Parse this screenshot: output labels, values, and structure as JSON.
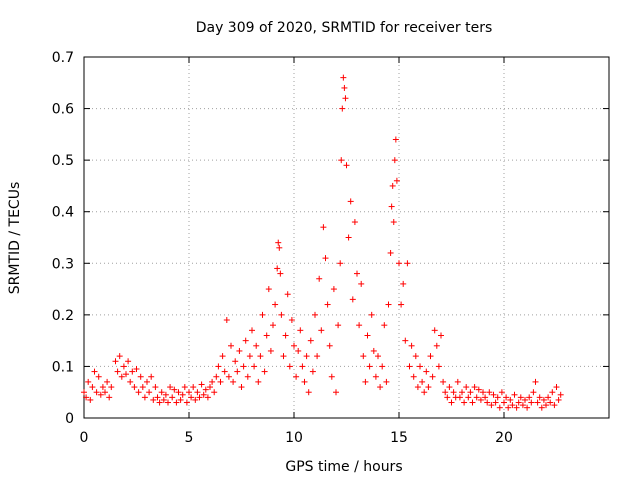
{
  "chart_data": {
    "type": "scatter",
    "title": "Day 309 of 2020, SRMTID for receiver ters",
    "xlabel": "GPS time / hours",
    "ylabel": "SRMTID / TECUs",
    "xlim": [
      0,
      25
    ],
    "ylim": [
      0,
      0.7
    ],
    "xticks": [
      0,
      5,
      10,
      15,
      20
    ],
    "xtick_labels": [
      "0",
      "5",
      "10",
      "15",
      "20"
    ],
    "yticks": [
      0,
      0.1,
      0.2,
      0.3,
      0.4,
      0.5,
      0.6,
      0.7
    ],
    "ytick_labels": [
      "0",
      "0.1",
      "0.2",
      "0.3",
      "0.4",
      "0.5",
      "0.6",
      "0.7"
    ],
    "grid": true,
    "marker": "+",
    "series_color": "#ff0000",
    "series": [
      {
        "name": "SRMTID",
        "points": [
          [
            0.0,
            0.05
          ],
          [
            0.1,
            0.04
          ],
          [
            0.2,
            0.07
          ],
          [
            0.3,
            0.035
          ],
          [
            0.4,
            0.06
          ],
          [
            0.5,
            0.09
          ],
          [
            0.6,
            0.05
          ],
          [
            0.7,
            0.08
          ],
          [
            0.8,
            0.045
          ],
          [
            0.9,
            0.06
          ],
          [
            1.0,
            0.05
          ],
          [
            1.1,
            0.07
          ],
          [
            1.2,
            0.04
          ],
          [
            1.3,
            0.06
          ],
          [
            1.5,
            0.11
          ],
          [
            1.6,
            0.09
          ],
          [
            1.7,
            0.12
          ],
          [
            1.8,
            0.08
          ],
          [
            1.9,
            0.1
          ],
          [
            2.0,
            0.085
          ],
          [
            2.1,
            0.11
          ],
          [
            2.2,
            0.07
          ],
          [
            2.3,
            0.09
          ],
          [
            2.4,
            0.06
          ],
          [
            2.5,
            0.095
          ],
          [
            2.6,
            0.05
          ],
          [
            2.7,
            0.08
          ],
          [
            2.8,
            0.06
          ],
          [
            2.9,
            0.04
          ],
          [
            3.0,
            0.07
          ],
          [
            3.1,
            0.05
          ],
          [
            3.2,
            0.08
          ],
          [
            3.3,
            0.035
          ],
          [
            3.4,
            0.06
          ],
          [
            3.5,
            0.04
          ],
          [
            3.6,
            0.03
          ],
          [
            3.7,
            0.05
          ],
          [
            3.8,
            0.035
          ],
          [
            3.9,
            0.045
          ],
          [
            4.0,
            0.03
          ],
          [
            4.1,
            0.06
          ],
          [
            4.2,
            0.04
          ],
          [
            4.3,
            0.055
          ],
          [
            4.4,
            0.03
          ],
          [
            4.5,
            0.05
          ],
          [
            4.6,
            0.035
          ],
          [
            4.7,
            0.045
          ],
          [
            4.8,
            0.06
          ],
          [
            4.9,
            0.03
          ],
          [
            5.0,
            0.05
          ],
          [
            5.1,
            0.04
          ],
          [
            5.2,
            0.06
          ],
          [
            5.3,
            0.035
          ],
          [
            5.4,
            0.05
          ],
          [
            5.5,
            0.04
          ],
          [
            5.6,
            0.065
          ],
          [
            5.7,
            0.045
          ],
          [
            5.8,
            0.055
          ],
          [
            5.9,
            0.04
          ],
          [
            6.0,
            0.06
          ],
          [
            6.1,
            0.07
          ],
          [
            6.2,
            0.05
          ],
          [
            6.3,
            0.08
          ],
          [
            6.4,
            0.1
          ],
          [
            6.5,
            0.07
          ],
          [
            6.6,
            0.12
          ],
          [
            6.7,
            0.09
          ],
          [
            6.8,
            0.19
          ],
          [
            6.9,
            0.08
          ],
          [
            7.0,
            0.14
          ],
          [
            7.1,
            0.07
          ],
          [
            7.2,
            0.11
          ],
          [
            7.3,
            0.09
          ],
          [
            7.4,
            0.13
          ],
          [
            7.5,
            0.06
          ],
          [
            7.6,
            0.1
          ],
          [
            7.7,
            0.15
          ],
          [
            7.8,
            0.08
          ],
          [
            7.9,
            0.12
          ],
          [
            8.0,
            0.17
          ],
          [
            8.1,
            0.1
          ],
          [
            8.2,
            0.14
          ],
          [
            8.3,
            0.07
          ],
          [
            8.4,
            0.12
          ],
          [
            8.5,
            0.2
          ],
          [
            8.6,
            0.09
          ],
          [
            8.7,
            0.16
          ],
          [
            8.8,
            0.25
          ],
          [
            8.9,
            0.13
          ],
          [
            9.0,
            0.18
          ],
          [
            9.1,
            0.22
          ],
          [
            9.2,
            0.29
          ],
          [
            9.25,
            0.34
          ],
          [
            9.3,
            0.33
          ],
          [
            9.35,
            0.28
          ],
          [
            9.4,
            0.2
          ],
          [
            9.5,
            0.12
          ],
          [
            9.6,
            0.16
          ],
          [
            9.7,
            0.24
          ],
          [
            9.8,
            0.1
          ],
          [
            9.9,
            0.19
          ],
          [
            10.0,
            0.14
          ],
          [
            10.1,
            0.08
          ],
          [
            10.2,
            0.13
          ],
          [
            10.3,
            0.17
          ],
          [
            10.4,
            0.1
          ],
          [
            10.5,
            0.07
          ],
          [
            10.6,
            0.12
          ],
          [
            10.7,
            0.05
          ],
          [
            10.8,
            0.15
          ],
          [
            10.9,
            0.09
          ],
          [
            11.0,
            0.2
          ],
          [
            11.1,
            0.12
          ],
          [
            11.2,
            0.27
          ],
          [
            11.3,
            0.17
          ],
          [
            11.4,
            0.37
          ],
          [
            11.5,
            0.31
          ],
          [
            11.6,
            0.22
          ],
          [
            11.7,
            0.14
          ],
          [
            11.8,
            0.08
          ],
          [
            11.9,
            0.25
          ],
          [
            12.0,
            0.05
          ],
          [
            12.1,
            0.18
          ],
          [
            12.2,
            0.3
          ],
          [
            12.25,
            0.5
          ],
          [
            12.3,
            0.6
          ],
          [
            12.35,
            0.66
          ],
          [
            12.4,
            0.64
          ],
          [
            12.45,
            0.62
          ],
          [
            12.5,
            0.49
          ],
          [
            12.6,
            0.35
          ],
          [
            12.7,
            0.42
          ],
          [
            12.8,
            0.23
          ],
          [
            12.9,
            0.38
          ],
          [
            13.0,
            0.28
          ],
          [
            13.1,
            0.18
          ],
          [
            13.2,
            0.26
          ],
          [
            13.3,
            0.12
          ],
          [
            13.4,
            0.07
          ],
          [
            13.5,
            0.16
          ],
          [
            13.6,
            0.1
          ],
          [
            13.7,
            0.2
          ],
          [
            13.8,
            0.13
          ],
          [
            13.9,
            0.08
          ],
          [
            14.0,
            0.12
          ],
          [
            14.1,
            0.06
          ],
          [
            14.2,
            0.1
          ],
          [
            14.3,
            0.18
          ],
          [
            14.4,
            0.07
          ],
          [
            14.5,
            0.22
          ],
          [
            14.6,
            0.32
          ],
          [
            14.65,
            0.41
          ],
          [
            14.7,
            0.45
          ],
          [
            14.75,
            0.38
          ],
          [
            14.8,
            0.5
          ],
          [
            14.85,
            0.54
          ],
          [
            14.9,
            0.46
          ],
          [
            15.0,
            0.3
          ],
          [
            15.1,
            0.22
          ],
          [
            15.2,
            0.26
          ],
          [
            15.3,
            0.15
          ],
          [
            15.4,
            0.3
          ],
          [
            15.5,
            0.1
          ],
          [
            15.6,
            0.14
          ],
          [
            15.7,
            0.08
          ],
          [
            15.8,
            0.12
          ],
          [
            15.9,
            0.06
          ],
          [
            16.0,
            0.1
          ],
          [
            16.1,
            0.07
          ],
          [
            16.2,
            0.05
          ],
          [
            16.3,
            0.09
          ],
          [
            16.4,
            0.06
          ],
          [
            16.5,
            0.12
          ],
          [
            16.6,
            0.08
          ],
          [
            16.7,
            0.17
          ],
          [
            16.8,
            0.14
          ],
          [
            16.9,
            0.1
          ],
          [
            17.0,
            0.16
          ],
          [
            17.1,
            0.07
          ],
          [
            17.2,
            0.05
          ],
          [
            17.3,
            0.04
          ],
          [
            17.4,
            0.06
          ],
          [
            17.5,
            0.03
          ],
          [
            17.6,
            0.05
          ],
          [
            17.7,
            0.04
          ],
          [
            17.8,
            0.07
          ],
          [
            17.9,
            0.04
          ],
          [
            18.0,
            0.05
          ],
          [
            18.1,
            0.03
          ],
          [
            18.2,
            0.06
          ],
          [
            18.3,
            0.04
          ],
          [
            18.4,
            0.05
          ],
          [
            18.5,
            0.03
          ],
          [
            18.6,
            0.06
          ],
          [
            18.7,
            0.04
          ],
          [
            18.8,
            0.055
          ],
          [
            18.9,
            0.035
          ],
          [
            19.0,
            0.05
          ],
          [
            19.1,
            0.04
          ],
          [
            19.2,
            0.03
          ],
          [
            19.3,
            0.05
          ],
          [
            19.4,
            0.025
          ],
          [
            19.5,
            0.045
          ],
          [
            19.6,
            0.03
          ],
          [
            19.7,
            0.04
          ],
          [
            19.8,
            0.02
          ],
          [
            19.9,
            0.05
          ],
          [
            20.0,
            0.03
          ],
          [
            20.1,
            0.04
          ],
          [
            20.2,
            0.02
          ],
          [
            20.3,
            0.035
          ],
          [
            20.4,
            0.025
          ],
          [
            20.5,
            0.045
          ],
          [
            20.6,
            0.02
          ],
          [
            20.7,
            0.03
          ],
          [
            20.8,
            0.04
          ],
          [
            20.9,
            0.025
          ],
          [
            21.0,
            0.035
          ],
          [
            21.1,
            0.02
          ],
          [
            21.2,
            0.04
          ],
          [
            21.3,
            0.03
          ],
          [
            21.4,
            0.05
          ],
          [
            21.5,
            0.07
          ],
          [
            21.6,
            0.03
          ],
          [
            21.7,
            0.04
          ],
          [
            21.8,
            0.02
          ],
          [
            21.9,
            0.035
          ],
          [
            22.0,
            0.025
          ],
          [
            22.1,
            0.04
          ],
          [
            22.2,
            0.03
          ],
          [
            22.3,
            0.05
          ],
          [
            22.4,
            0.025
          ],
          [
            22.5,
            0.06
          ],
          [
            22.6,
            0.035
          ],
          [
            22.7,
            0.045
          ]
        ]
      }
    ]
  }
}
